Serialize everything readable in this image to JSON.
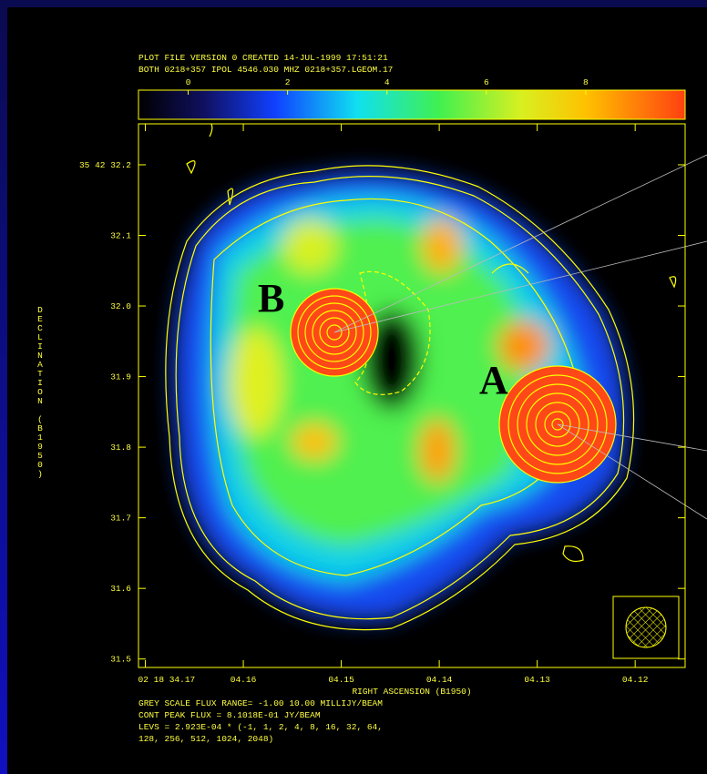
{
  "chart_data": {
    "type": "image",
    "header": [
      "PLOT FILE VERSION 0  CREATED 14-JUL-1999 17:51:21",
      "BOTH  0218+357  IPOL  4546.030 MHZ  0218+357.LGEOM.17"
    ],
    "colorbar": {
      "clim": [
        -1,
        10
      ],
      "ticks": [
        0,
        2,
        4,
        6,
        8
      ]
    },
    "xlabel": "RIGHT ASCENSION (B1950)",
    "ylabel": "DECLINATION (B1950)",
    "xlim": [
      4.1707,
      4.1149
    ],
    "ylim": [
      31.488,
      32.258
    ],
    "xticks": [
      {
        "value": 4.17,
        "label": "02 18 34.17"
      },
      {
        "value": 4.16,
        "label": "04.16"
      },
      {
        "value": 4.15,
        "label": "04.15"
      },
      {
        "value": 4.14,
        "label": "04.14"
      },
      {
        "value": 4.13,
        "label": "04.13"
      },
      {
        "value": 4.12,
        "label": "04.12"
      }
    ],
    "yticks": [
      {
        "value": 32.2,
        "label": "35 42 32.2"
      },
      {
        "value": 32.1,
        "label": "32.1"
      },
      {
        "value": 32.0,
        "label": "32.0"
      },
      {
        "value": 31.9,
        "label": "31.9"
      },
      {
        "value": 31.8,
        "label": "31.8"
      },
      {
        "value": 31.7,
        "label": "31.7"
      },
      {
        "value": 31.6,
        "label": "31.6"
      },
      {
        "value": 31.5,
        "label": "31.5"
      }
    ],
    "annotations": [
      "B",
      "A"
    ],
    "footer": [
      "GREY SCALE FLUX RANGE= -1.00 10.00 MILLIJY/BEAM",
      "CONT PEAK FLUX =  8.1018E-01 JY/BEAM",
      "LEVS = 2.923E-04 * (-1, 1, 2, 4, 8, 16, 32, 64,",
      "128, 256, 512, 1024, 2048)"
    ]
  }
}
